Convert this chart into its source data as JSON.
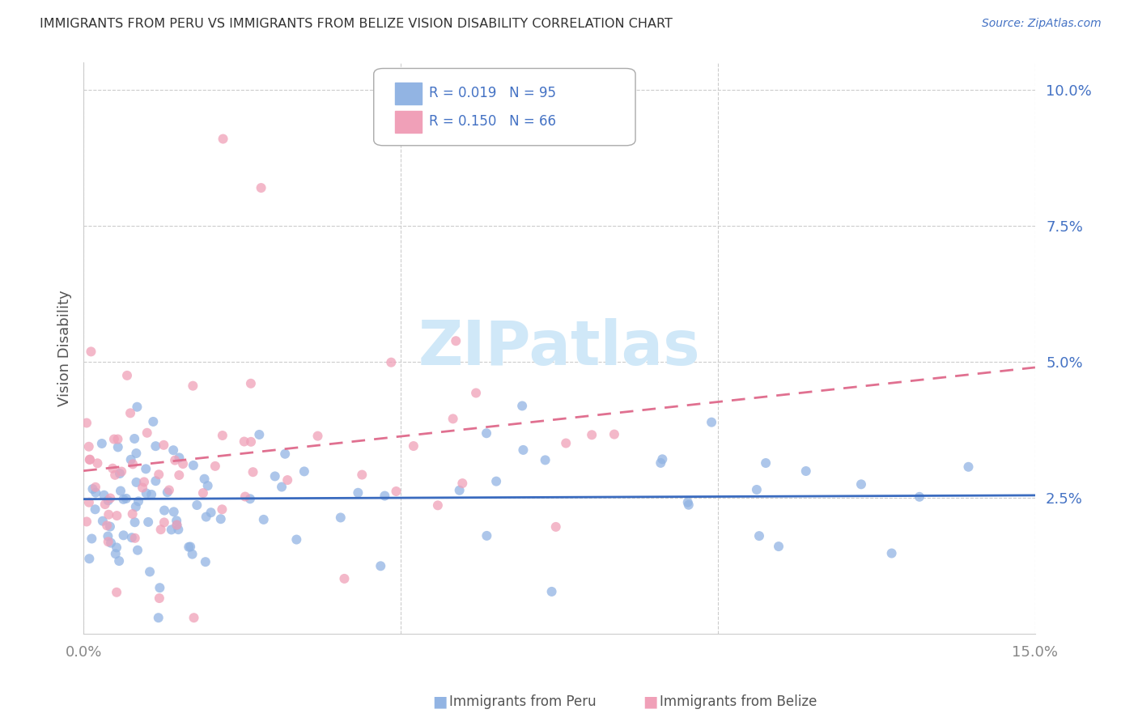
{
  "title": "IMMIGRANTS FROM PERU VS IMMIGRANTS FROM BELIZE VISION DISABILITY CORRELATION CHART",
  "source": "Source: ZipAtlas.com",
  "ylabel": "Vision Disability",
  "xlim": [
    0.0,
    0.15
  ],
  "ylim": [
    0.0,
    0.105
  ],
  "ytick_vals": [
    0.025,
    0.05,
    0.075,
    0.1
  ],
  "ytick_labels": [
    "2.5%",
    "5.0%",
    "7.5%",
    "10.0%"
  ],
  "xtick_vals": [
    0.0,
    0.05,
    0.1,
    0.15
  ],
  "xtick_labels": [
    "0.0%",
    "",
    "",
    "15.0%"
  ],
  "peru_color": "#92b4e3",
  "belize_color": "#f0a0b8",
  "peru_line_color": "#3a6bbf",
  "belize_line_color": "#e07090",
  "peru_R": 0.019,
  "peru_N": 95,
  "belize_R": 0.15,
  "belize_N": 66,
  "legend_R_N_color": "#4472c4",
  "watermark": "ZIPatlas",
  "watermark_color": "#d0e8f8",
  "background_color": "#ffffff",
  "grid_color": "#cccccc",
  "title_color": "#333333",
  "source_color": "#4472c4",
  "ytick_color": "#4472c4",
  "xtick_color": "#888888",
  "ylabel_color": "#555555",
  "peru_intercept": 0.025,
  "peru_slope": 0.002,
  "belize_intercept": 0.027,
  "belize_slope": 0.16
}
